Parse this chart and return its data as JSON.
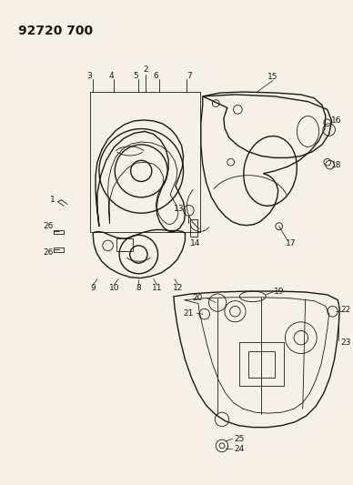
{
  "title": "92720 700",
  "bg": "#f5f0e8",
  "lc": "#1a1a1a",
  "figsize": [
    3.88,
    5.33
  ],
  "dpi": 100
}
